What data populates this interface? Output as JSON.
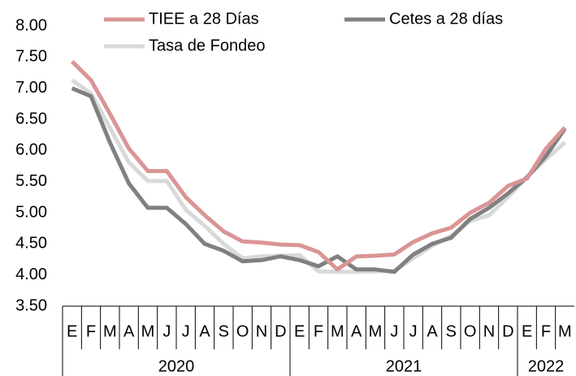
{
  "chart_data": {
    "type": "line",
    "categories": [
      "E",
      "F",
      "M",
      "A",
      "M",
      "J",
      "J",
      "A",
      "S",
      "O",
      "N",
      "D",
      "E",
      "F",
      "M",
      "A",
      "M",
      "J",
      "J",
      "A",
      "S",
      "O",
      "N",
      "D",
      "E",
      "F",
      "M"
    ],
    "year_groups": [
      {
        "label": "2020",
        "months": 12
      },
      {
        "label": "2021",
        "months": 12
      },
      {
        "label": "2022",
        "months": 3
      }
    ],
    "series": [
      {
        "name": "TIEE a 28 Días",
        "color": "#d99594",
        "values": [
          7.43,
          7.13,
          6.59,
          6.03,
          5.67,
          5.67,
          5.25,
          4.96,
          4.7,
          4.54,
          4.52,
          4.49,
          4.48,
          4.37,
          4.09,
          4.3,
          4.31,
          4.33,
          4.53,
          4.67,
          4.76,
          5.0,
          5.16,
          5.43,
          5.55,
          6.03,
          6.37
        ]
      },
      {
        "name": "Cetes a 28 días",
        "color": "#808080",
        "values": [
          7.0,
          6.87,
          6.13,
          5.47,
          5.08,
          5.08,
          4.82,
          4.5,
          4.39,
          4.22,
          4.24,
          4.3,
          4.24,
          4.14,
          4.3,
          4.09,
          4.09,
          4.05,
          4.33,
          4.5,
          4.6,
          4.9,
          5.08,
          5.31,
          5.57,
          5.91,
          6.35
        ]
      },
      {
        "name": "Tasa de Fondeo",
        "color": "#d9d9d9",
        "values": [
          7.13,
          6.92,
          6.36,
          5.81,
          5.51,
          5.51,
          5.05,
          4.79,
          4.5,
          4.27,
          4.3,
          4.31,
          4.32,
          4.06,
          4.05,
          4.05,
          4.06,
          4.07,
          4.27,
          4.47,
          4.63,
          4.87,
          4.96,
          5.25,
          5.57,
          5.86,
          6.13
        ]
      }
    ],
    "ylim": [
      3.5,
      8.0
    ],
    "yticks": [
      {
        "value": 3.5,
        "label": "3.50"
      },
      {
        "value": 4,
        "label": "4.00"
      },
      {
        "value": 4.5,
        "label": "4.50"
      },
      {
        "value": 5,
        "label": "5.00"
      },
      {
        "value": 5.5,
        "label": "5.50"
      },
      {
        "value": 6,
        "label": "6.00"
      },
      {
        "value": 6.5,
        "label": "6.50"
      },
      {
        "value": 7,
        "label": "7.00"
      },
      {
        "value": 7.5,
        "label": "7.50"
      },
      {
        "value": 8,
        "label": "8.00"
      }
    ],
    "grid": false
  }
}
